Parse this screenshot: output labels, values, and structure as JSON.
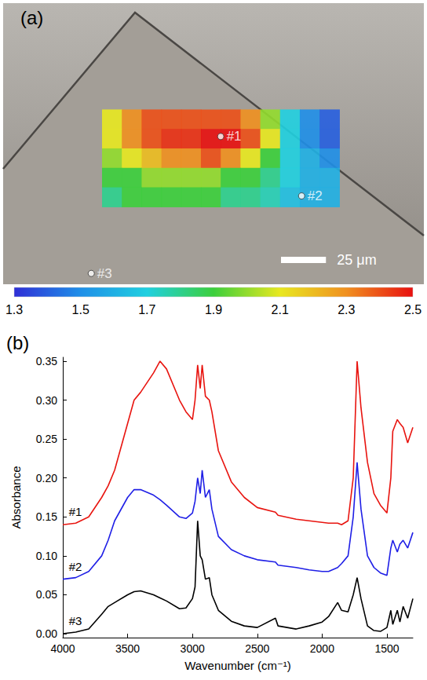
{
  "chart_data": [
    {
      "type": "heatmap",
      "label": "(a)",
      "xlim": [
        0,
        234
      ],
      "ylim": [
        0,
        156
      ],
      "tick_labels": false,
      "cell_x": [
        55,
        66,
        77,
        88,
        99,
        110,
        121,
        132,
        143,
        154,
        165,
        176,
        187
      ],
      "cell_y": [
        59,
        69.8,
        80.6,
        91.4,
        102.2,
        113
      ],
      "cells": [
        [
          2.1,
          2.3,
          2.4,
          2.4,
          2.4,
          2.4,
          2.4,
          2.3,
          2.0,
          1.7,
          1.5,
          1.4
        ],
        [
          2.1,
          2.3,
          2.4,
          2.45,
          2.45,
          2.5,
          2.5,
          2.4,
          2.1,
          1.7,
          1.5,
          1.4
        ],
        [
          2.0,
          2.1,
          2.2,
          2.3,
          2.3,
          2.4,
          2.3,
          2.1,
          1.9,
          1.7,
          1.6,
          1.5
        ],
        [
          1.9,
          1.9,
          2.0,
          2.0,
          2.0,
          2.0,
          1.9,
          1.9,
          1.8,
          1.7,
          1.6,
          1.6
        ],
        [
          1.8,
          1.9,
          1.9,
          1.9,
          1.9,
          1.9,
          1.8,
          1.8,
          1.75,
          1.65,
          1.6,
          1.6
        ]
      ],
      "colorbar": {
        "range": [
          1.3,
          2.5
        ],
        "ticks": [
          1.3,
          1.5,
          1.7,
          1.9,
          2.1,
          2.3,
          2.5
        ]
      },
      "points": [
        {
          "label": "#1",
          "x": 121,
          "y": 74
        },
        {
          "label": "#2",
          "x": 166,
          "y": 107
        },
        {
          "label": "#3",
          "x": 49,
          "y": 150
        }
      ],
      "scale_bar": {
        "length": 25,
        "label": "25 μm"
      }
    },
    {
      "type": "line",
      "label": "(b)",
      "x_label": "Wavenumber (cm⁻¹)",
      "y_label": "Absorbance",
      "xlim": [
        4000,
        1300
      ],
      "ylim": [
        -0.005,
        0.355
      ],
      "xticks": [
        4000,
        3500,
        3000,
        2500,
        2000,
        1500
      ],
      "yticks": [
        {
          "value": 0,
          "label": "0.00"
        },
        {
          "value": 0.05,
          "label": "0.05"
        },
        {
          "value": 0.1,
          "label": "0.10"
        },
        {
          "value": 0.15,
          "label": "0.15"
        },
        {
          "value": 0.2,
          "label": "0.20"
        },
        {
          "value": 0.25,
          "label": "0.25"
        },
        {
          "value": 0.3,
          "label": "0.30"
        },
        {
          "value": 0.35,
          "label": "0.35"
        }
      ],
      "x": [
        4000,
        3900,
        3800,
        3700,
        3650,
        3600,
        3500,
        3450,
        3400,
        3300,
        3250,
        3200,
        3100,
        3050,
        3000,
        2980,
        2960,
        2940,
        2925,
        2900,
        2870,
        2850,
        2800,
        2700,
        2600,
        2500,
        2360,
        2340,
        2200,
        2100,
        2000,
        1950,
        1880,
        1850,
        1800,
        1760,
        1730,
        1700,
        1650,
        1600,
        1550,
        1500,
        1470,
        1455,
        1420,
        1400,
        1375,
        1340,
        1300
      ],
      "series": [
        {
          "name": "#1",
          "color": "#e8140f",
          "values": [
            0.14,
            0.142,
            0.15,
            0.175,
            0.19,
            0.21,
            0.27,
            0.3,
            0.31,
            0.335,
            0.35,
            0.34,
            0.3,
            0.285,
            0.275,
            0.3,
            0.345,
            0.315,
            0.345,
            0.305,
            0.3,
            0.285,
            0.235,
            0.195,
            0.175,
            0.162,
            0.156,
            0.152,
            0.147,
            0.145,
            0.143,
            0.142,
            0.142,
            0.14,
            0.145,
            0.2,
            0.35,
            0.29,
            0.22,
            0.18,
            0.165,
            0.155,
            0.2,
            0.26,
            0.275,
            0.27,
            0.265,
            0.245,
            0.265
          ]
        },
        {
          "name": "#2",
          "color": "#1f1fe6",
          "values": [
            0.07,
            0.072,
            0.08,
            0.1,
            0.12,
            0.145,
            0.175,
            0.185,
            0.185,
            0.178,
            0.172,
            0.165,
            0.15,
            0.148,
            0.155,
            0.17,
            0.2,
            0.18,
            0.21,
            0.175,
            0.185,
            0.16,
            0.125,
            0.108,
            0.1,
            0.095,
            0.092,
            0.088,
            0.085,
            0.082,
            0.08,
            0.08,
            0.085,
            0.09,
            0.1,
            0.15,
            0.22,
            0.16,
            0.1,
            0.085,
            0.078,
            0.075,
            0.11,
            0.12,
            0.105,
            0.115,
            0.12,
            0.11,
            0.13
          ]
        },
        {
          "name": "#3",
          "color": "#000000",
          "values": [
            0.0,
            0.002,
            0.006,
            0.025,
            0.035,
            0.04,
            0.05,
            0.054,
            0.055,
            0.05,
            0.046,
            0.042,
            0.032,
            0.033,
            0.045,
            0.06,
            0.145,
            0.1,
            0.095,
            0.07,
            0.072,
            0.05,
            0.03,
            0.016,
            0.01,
            0.008,
            0.02,
            0.01,
            0.006,
            0.01,
            0.015,
            0.022,
            0.04,
            0.03,
            0.028,
            0.05,
            0.072,
            0.045,
            0.01,
            0.004,
            0.003,
            0.008,
            0.03,
            0.012,
            0.03,
            0.015,
            0.035,
            0.02,
            0.045
          ]
        }
      ]
    }
  ]
}
